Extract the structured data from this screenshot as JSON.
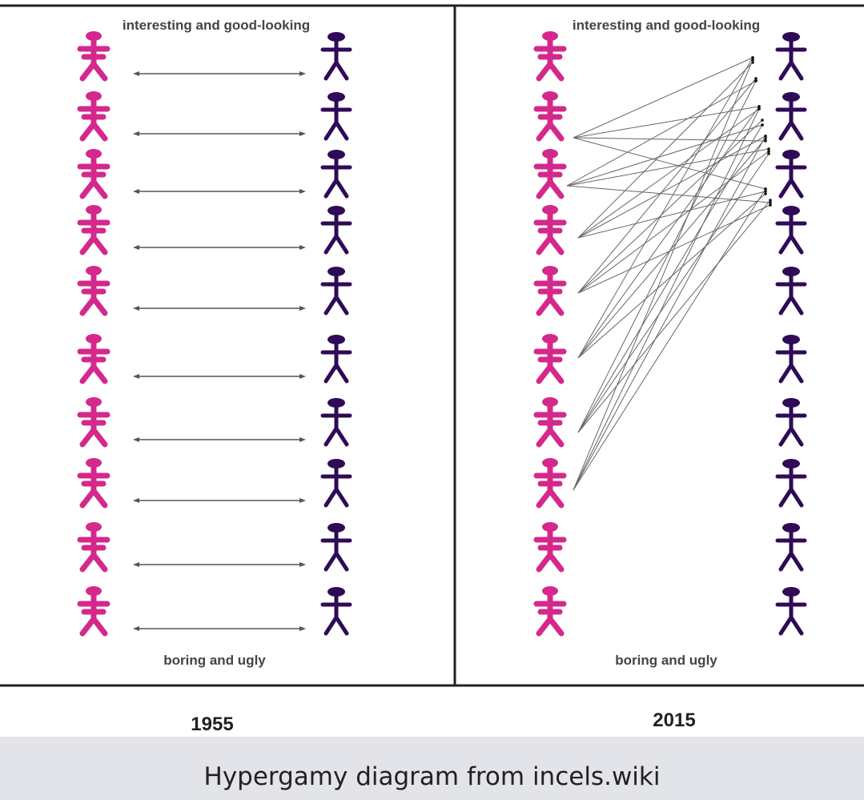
{
  "panels": [
    {
      "top_label": "interesting and good-looking",
      "bottom_label": "boring and ugly",
      "year": "1955",
      "matching": "each-to-counterpart",
      "women_count": 10,
      "men_count": 10
    },
    {
      "top_label": "interesting and good-looking",
      "bottom_label": "boring and ugly",
      "year": "2015",
      "matching": "many-to-top-men",
      "women_count": 10,
      "men_count": 10
    }
  ],
  "caption": "Hypergamy diagram from incels.wiki",
  "colors": {
    "women": "#d4288c",
    "men": "#2e0a57",
    "connector": "#555555",
    "border": "#222222",
    "caption_bg": "#e2e4e9"
  }
}
